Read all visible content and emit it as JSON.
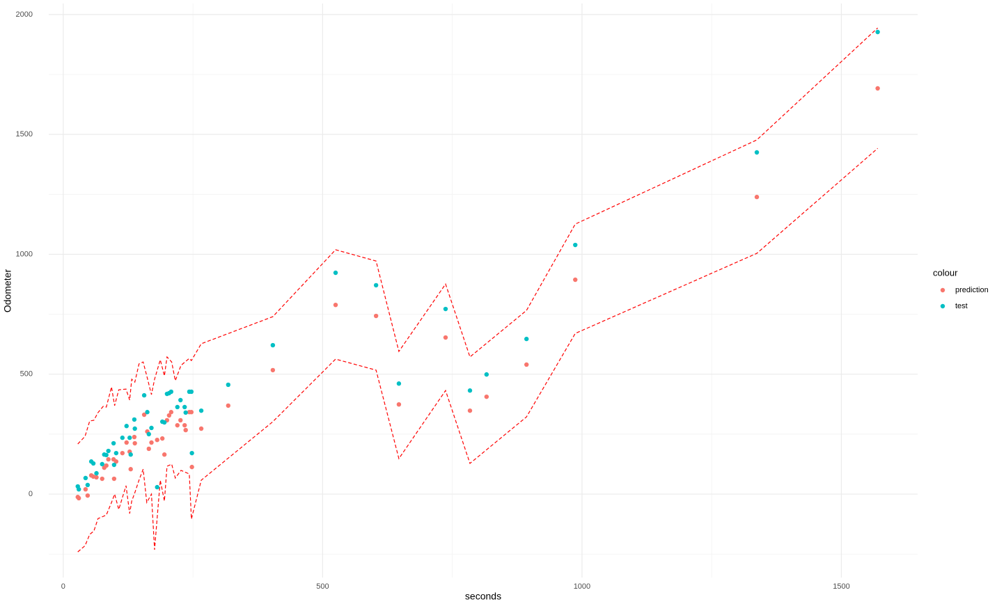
{
  "chart_data": {
    "type": "scatter",
    "x_label": "seconds",
    "y_label": "Odometer",
    "legend_title": "colour",
    "xlim": [
      -28,
      1647
    ],
    "ylim": [
      -348,
      2046
    ],
    "xticks": [
      0,
      500,
      1000,
      1500
    ],
    "yticks": [
      0,
      500,
      1000,
      1500,
      2000
    ],
    "x_minor_grid": [
      250,
      750,
      1250
    ],
    "y_minor_grid": [
      -250,
      250,
      750,
      1250,
      1750
    ],
    "grid": true,
    "legend": "right",
    "series": [
      {
        "name": "prediction",
        "color": "#F8766D",
        "x": [
          28,
          30,
          43,
          47,
          54,
          58,
          64,
          75,
          79,
          83,
          87,
          97,
          98,
          102,
          114,
          122,
          128,
          130,
          137,
          138,
          156,
          162,
          165,
          170,
          181,
          191,
          195,
          200,
          204,
          208,
          220,
          226,
          234,
          236,
          243,
          247,
          248,
          266,
          318,
          404,
          525,
          603,
          647,
          737,
          784,
          816,
          893,
          987,
          1337,
          1570
        ],
        "values": [
          -12,
          -17,
          20,
          -6,
          78,
          73,
          70,
          64,
          110,
          119,
          145,
          145,
          64,
          136,
          171,
          215,
          177,
          104,
          238,
          212,
          331,
          261,
          189,
          215,
          226,
          232,
          165,
          308,
          328,
          342,
          287,
          308,
          287,
          267,
          342,
          342,
          113,
          273,
          369,
          517,
          789,
          743,
          374,
          653,
          348,
          406,
          540,
          894,
          1239,
          1692
        ]
      },
      {
        "name": "test",
        "color": "#00BFC4",
        "x": [
          28,
          30,
          43,
          47,
          54,
          58,
          64,
          75,
          79,
          83,
          87,
          97,
          98,
          102,
          114,
          122,
          128,
          130,
          137,
          138,
          156,
          162,
          165,
          170,
          181,
          191,
          195,
          200,
          204,
          208,
          220,
          226,
          234,
          236,
          243,
          247,
          248,
          266,
          318,
          404,
          525,
          603,
          647,
          737,
          784,
          816,
          893,
          987,
          1337,
          1570
        ],
        "values": [
          32,
          20,
          67,
          38,
          136,
          128,
          87,
          125,
          165,
          163,
          180,
          212,
          122,
          171,
          235,
          284,
          235,
          165,
          311,
          273,
          412,
          342,
          250,
          276,
          29,
          302,
          299,
          418,
          421,
          427,
          363,
          392,
          363,
          340,
          427,
          427,
          171,
          348,
          456,
          621,
          923,
          871,
          461,
          772,
          432,
          499,
          647,
          1039,
          1425,
          1927
        ]
      }
    ],
    "interval": {
      "color": "#FF0000",
      "x": [
        28,
        42,
        51,
        59,
        67,
        77,
        83,
        93,
        99,
        107,
        121,
        128,
        132,
        138,
        146,
        154,
        161,
        170,
        176,
        187,
        195,
        200,
        209,
        216,
        227,
        243,
        247,
        266,
        404,
        525,
        603,
        647,
        737,
        784,
        893,
        987,
        1337,
        1570
      ],
      "upper": [
        209,
        241,
        305,
        308,
        340,
        366,
        363,
        447,
        369,
        435,
        438,
        392,
        479,
        467,
        543,
        551,
        493,
        415,
        479,
        560,
        493,
        572,
        551,
        473,
        537,
        566,
        557,
        627,
        740,
        1019,
        972,
        595,
        876,
        572,
        766,
        1126,
        1477,
        1944
      ],
      "lower": [
        -241,
        -215,
        -168,
        -154,
        -102,
        -93,
        -87,
        -35,
        0,
        -64,
        35,
        -81,
        -29,
        6,
        58,
        104,
        -35,
        0,
        -232,
        58,
        -29,
        116,
        125,
        67,
        99,
        84,
        -104,
        58,
        302,
        563,
        517,
        148,
        432,
        128,
        322,
        670,
        1004,
        1442
      ]
    }
  }
}
